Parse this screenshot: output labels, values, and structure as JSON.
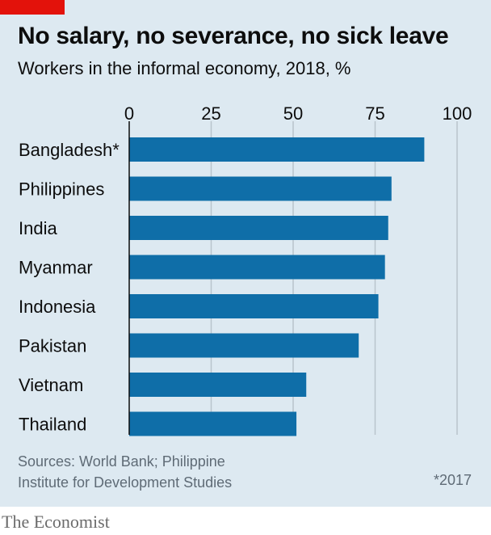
{
  "title": "No salary, no severance, no sick leave",
  "subtitle": "Workers in the informal economy, 2018, %",
  "source": {
    "line1": "Sources: World Bank; Philippine",
    "line2": "Institute for Development Studies"
  },
  "footnote": "*2017",
  "brand": "The Economist",
  "colors": {
    "bar": "#0f6ea8",
    "background": "#dde9f1",
    "accent": "#e3120b",
    "grid": "#b9c4cc"
  },
  "chart_data": {
    "type": "bar",
    "orientation": "horizontal",
    "categories": [
      "Bangladesh*",
      "Philippines",
      "India",
      "Myanmar",
      "Indonesia",
      "Pakistan",
      "Vietnam",
      "Thailand"
    ],
    "values": [
      90,
      80,
      79,
      78,
      76,
      70,
      54,
      51
    ],
    "xlim": [
      0,
      100
    ],
    "xticks": [
      0,
      25,
      50,
      75,
      100
    ],
    "grid": true,
    "xlabel": "",
    "ylabel": ""
  }
}
